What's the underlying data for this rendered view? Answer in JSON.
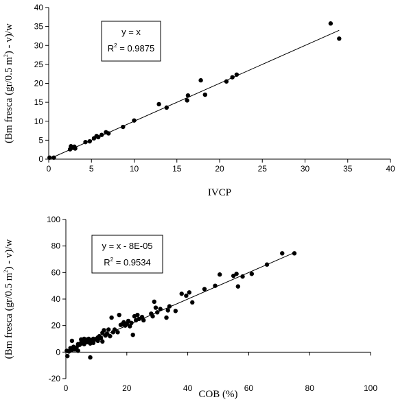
{
  "chart_data": [
    {
      "type": "scatter",
      "title": "",
      "xlabel": "IVCP",
      "ylabel_parts": [
        "(Bm fresca (gr/0.5 m",
        "2",
        ") - v)/w"
      ],
      "xlim": [
        0,
        40
      ],
      "ylim": [
        0,
        40
      ],
      "xticks": [
        0,
        5,
        10,
        15,
        20,
        25,
        30,
        35,
        40
      ],
      "yticks": [
        0,
        5,
        10,
        15,
        20,
        25,
        30,
        35,
        40
      ],
      "legend": {
        "equation": "y = x",
        "r2_prefix": "R",
        "r2_sup": "2",
        "r2_value": " = 0.9875"
      },
      "trendline": {
        "slope": 1,
        "intercept": 0,
        "x_range": [
          0,
          34
        ]
      },
      "points": [
        [
          0.1,
          0.4
        ],
        [
          0.6,
          0.4
        ],
        [
          2.5,
          2.6
        ],
        [
          2.6,
          3.4
        ],
        [
          2.8,
          3.0
        ],
        [
          3.0,
          3.3
        ],
        [
          3.1,
          2.8
        ],
        [
          4.3,
          4.5
        ],
        [
          4.8,
          4.7
        ],
        [
          5.3,
          5.5
        ],
        [
          5.6,
          6.1
        ],
        [
          5.8,
          5.8
        ],
        [
          6.2,
          6.4
        ],
        [
          6.7,
          7.1
        ],
        [
          7.0,
          6.8
        ],
        [
          8.7,
          8.5
        ],
        [
          10.0,
          10.2
        ],
        [
          12.9,
          14.5
        ],
        [
          13.8,
          13.6
        ],
        [
          16.2,
          15.5
        ],
        [
          16.3,
          16.8
        ],
        [
          17.8,
          20.8
        ],
        [
          18.3,
          17.0
        ],
        [
          20.8,
          20.5
        ],
        [
          21.5,
          21.6
        ],
        [
          22.0,
          22.3
        ],
        [
          33.0,
          35.8
        ],
        [
          34.0,
          31.8
        ]
      ]
    },
    {
      "type": "scatter",
      "title": "",
      "xlabel": "COB (%)",
      "ylabel_parts": [
        "(Bm fresca (gr/0.5 m",
        "2",
        ") - v)/w"
      ],
      "xlim": [
        0,
        100
      ],
      "ylim": [
        -20,
        100
      ],
      "xticks": [
        0,
        20,
        40,
        60,
        80,
        100
      ],
      "yticks": [
        -20,
        0,
        20,
        40,
        60,
        80,
        100
      ],
      "legend": {
        "equation": "y = x - 8E-05",
        "r2_prefix": "R",
        "r2_sup": "2",
        "r2_value": " = 0.9534"
      },
      "trendline": {
        "slope": 1,
        "intercept": -8e-05,
        "x_range": [
          0,
          75
        ]
      },
      "points": [
        [
          0.3,
          1.0
        ],
        [
          0.5,
          -3.0
        ],
        [
          1.0,
          0.5
        ],
        [
          1.5,
          3.0
        ],
        [
          2.0,
          1.5
        ],
        [
          2.0,
          8.5
        ],
        [
          2.5,
          4.0
        ],
        [
          3.0,
          2.0
        ],
        [
          3.5,
          3.5
        ],
        [
          4.0,
          6.0
        ],
        [
          4.0,
          1.0
        ],
        [
          4.5,
          5.5
        ],
        [
          5.0,
          7.0
        ],
        [
          5.0,
          9.5
        ],
        [
          5.5,
          8.0
        ],
        [
          6.0,
          6.0
        ],
        [
          6.0,
          10.0
        ],
        [
          6.5,
          8.5
        ],
        [
          7.0,
          7.5
        ],
        [
          7.0,
          9.5
        ],
        [
          7.5,
          10.0
        ],
        [
          8.0,
          6.5
        ],
        [
          8.0,
          9.0
        ],
        [
          8.0,
          -4.0
        ],
        [
          8.5,
          8.0
        ],
        [
          9.0,
          10.0
        ],
        [
          9.0,
          7.0
        ],
        [
          9.5,
          9.5
        ],
        [
          10.0,
          10.0
        ],
        [
          10.5,
          11.0
        ],
        [
          10.5,
          8.5
        ],
        [
          11.0,
          12.0
        ],
        [
          11.5,
          10.5
        ],
        [
          12.0,
          8.0
        ],
        [
          12.0,
          14.5
        ],
        [
          12.5,
          16.5
        ],
        [
          13.0,
          12.5
        ],
        [
          13.5,
          14.0
        ],
        [
          14.0,
          17.0
        ],
        [
          14.5,
          12.0
        ],
        [
          15.0,
          26.0
        ],
        [
          15.5,
          15.0
        ],
        [
          16.0,
          17.0
        ],
        [
          17.0,
          15.0
        ],
        [
          17.5,
          28.0
        ],
        [
          18.0,
          20.5
        ],
        [
          18.5,
          21.0
        ],
        [
          19.0,
          22.5
        ],
        [
          19.5,
          20.0
        ],
        [
          20.0,
          21.5
        ],
        [
          20.5,
          23.5
        ],
        [
          21.0,
          19.5
        ],
        [
          21.5,
          22.0
        ],
        [
          22.0,
          13.0
        ],
        [
          22.5,
          27.0
        ],
        [
          23.0,
          24.0
        ],
        [
          23.5,
          28.0
        ],
        [
          24.0,
          25.0
        ],
        [
          25.0,
          26.5
        ],
        [
          25.5,
          24.0
        ],
        [
          28.0,
          29.0
        ],
        [
          28.5,
          27.0
        ],
        [
          29.0,
          38.0
        ],
        [
          29.5,
          33.5
        ],
        [
          30.0,
          30.0
        ],
        [
          31.0,
          32.5
        ],
        [
          33.0,
          26.0
        ],
        [
          33.5,
          31.5
        ],
        [
          34.0,
          34.5
        ],
        [
          36.0,
          31.0
        ],
        [
          38.0,
          44.0
        ],
        [
          39.5,
          42.5
        ],
        [
          40.5,
          45.0
        ],
        [
          41.5,
          37.5
        ],
        [
          45.5,
          47.5
        ],
        [
          49.0,
          50.0
        ],
        [
          50.5,
          58.5
        ],
        [
          55.0,
          57.5
        ],
        [
          56.0,
          59.0
        ],
        [
          56.5,
          49.5
        ],
        [
          58.0,
          57.0
        ],
        [
          61.0,
          59.0
        ],
        [
          66.0,
          66.0
        ],
        [
          71.0,
          74.5
        ],
        [
          75.0,
          74.5
        ]
      ]
    }
  ]
}
